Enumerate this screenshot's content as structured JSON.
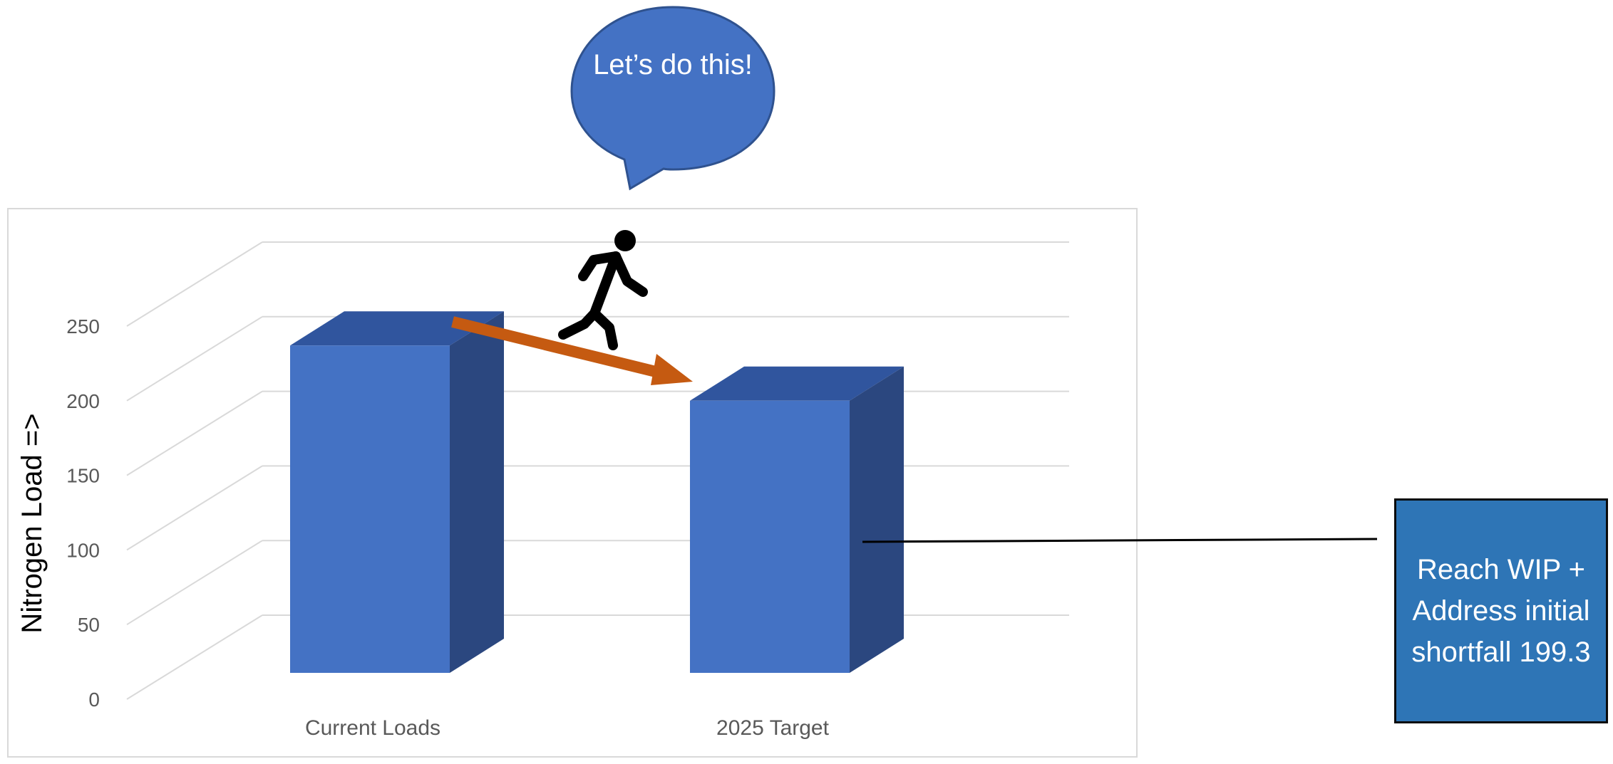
{
  "speech_bubble": {
    "text": "Let’s do this!"
  },
  "callout": {
    "text": "Reach WIP + Address initial shortfall 199.3"
  },
  "colors": {
    "bar_front": "#4472c4",
    "bar_top": "#30559e",
    "bar_side": "#2b477f",
    "arrow": "#c55a11",
    "bubble_fill": "#4472c4",
    "bubble_stroke": "#2f528f",
    "callout_fill": "#2e75b6",
    "grid": "#d9d9d9",
    "tick_text": "#595959"
  },
  "icons": {
    "walker": "walking-person-icon"
  },
  "chart_data": {
    "type": "bar",
    "style": "3d-column",
    "categories": [
      "Current Loads",
      "2025 Target"
    ],
    "values": [
      237,
      200
    ],
    "ylabel": "Nitrogen Load =>",
    "xlabel": "",
    "ylim": [
      0,
      250
    ],
    "yticks": [
      0,
      50,
      100,
      150,
      200,
      250
    ],
    "grid": true,
    "legend": "none"
  }
}
